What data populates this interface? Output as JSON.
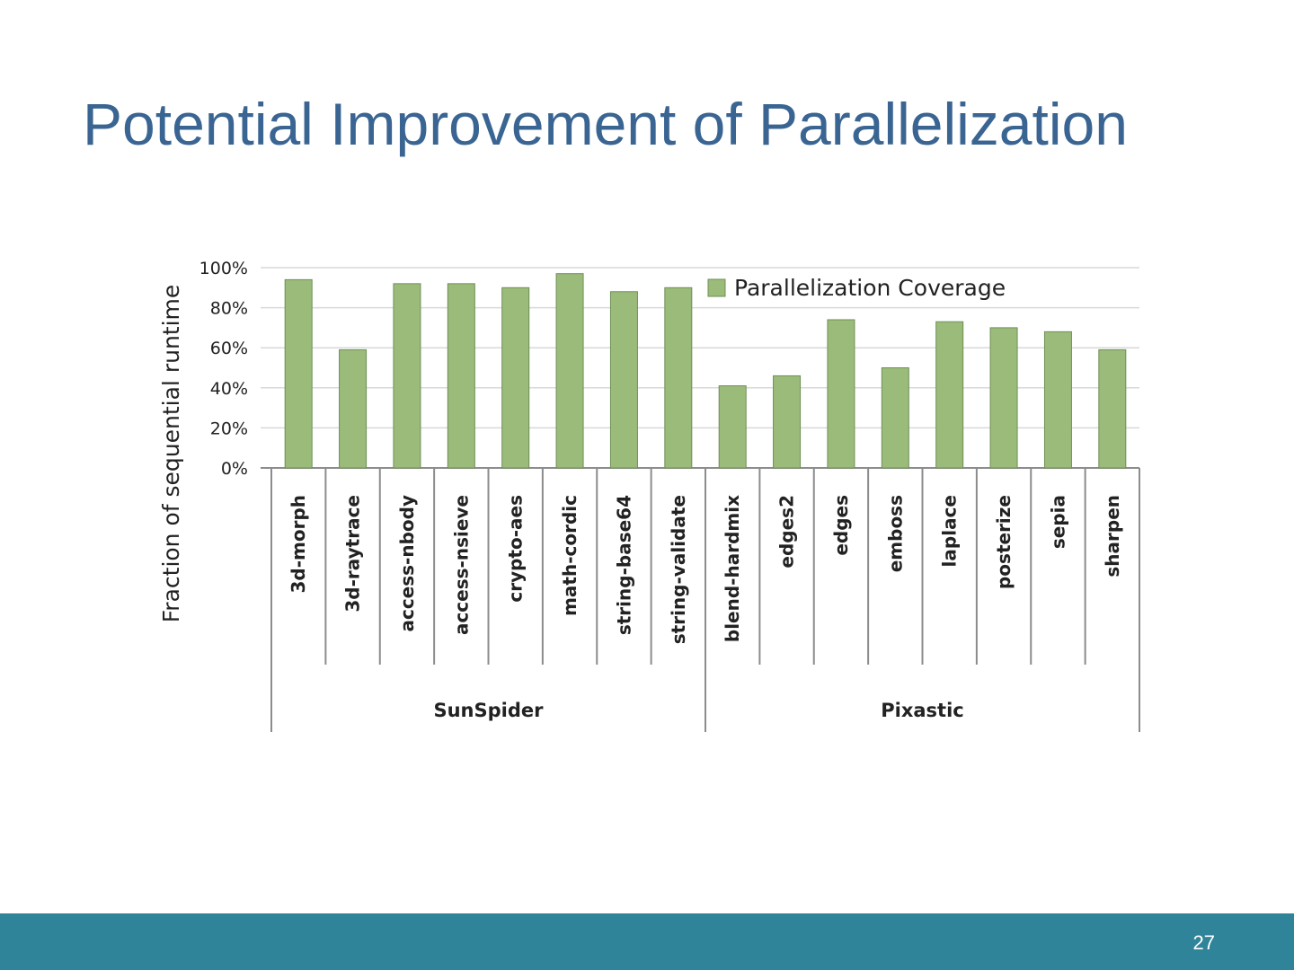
{
  "slide": {
    "title": "Potential Improvement of Parallelization",
    "page_number": "27"
  },
  "colors": {
    "title": "#3a6593",
    "bar_fill": "#9bbb7b",
    "bar_stroke": "#6e8f55",
    "grid": "#d9d9d9",
    "axis": "#8c8c8c",
    "footer": "#308499"
  },
  "chart_data": {
    "type": "bar",
    "title": "",
    "ylabel": "Fraction of sequential runtime",
    "xlabel": "",
    "ylim": [
      0,
      100
    ],
    "yticks": [
      0,
      20,
      40,
      60,
      80,
      100
    ],
    "ytick_labels": [
      "0%",
      "20%",
      "40%",
      "60%",
      "80%",
      "100%"
    ],
    "grid": true,
    "legend": {
      "position": "top-right",
      "entries": [
        "Parallelization Coverage"
      ]
    },
    "categories": [
      "3d-morph",
      "3d-raytrace",
      "access-nbody",
      "access-nsieve",
      "crypto-aes",
      "math-cordic",
      "string-base64",
      "string-validate",
      "blend-hardmix",
      "edges2",
      "edges",
      "emboss",
      "laplace",
      "posterize",
      "sepia",
      "sharpen"
    ],
    "groups": [
      {
        "name": "SunSpider",
        "count": 8
      },
      {
        "name": "Pixastic",
        "count": 8
      }
    ],
    "series": [
      {
        "name": "Parallelization Coverage",
        "values": [
          94,
          59,
          92,
          92,
          90,
          97,
          88,
          90,
          41,
          46,
          74,
          50,
          73,
          70,
          68,
          59
        ]
      }
    ]
  }
}
